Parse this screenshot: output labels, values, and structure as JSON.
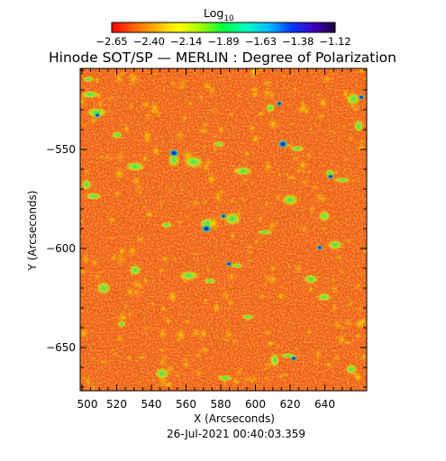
{
  "title": "Hinode SOT/SP — MERLIN : Degree of Polarization",
  "colorbar": {
    "label": "Log",
    "label_subscript": "10",
    "tick_labels": [
      "−2.65",
      "−2.40",
      "−2.14",
      "−1.89",
      "−1.63",
      "−1.38",
      "−1.12"
    ],
    "colors": [
      "#ff0000",
      "#ff6400",
      "#ffb400",
      "#ffff00",
      "#a0ff00",
      "#00ff40",
      "#00ffc0",
      "#00c0ff",
      "#0040ff",
      "#4000c0",
      "#200040"
    ]
  },
  "axes": {
    "x_label": "X (Arcseconds)",
    "y_label": "Y (Arcseconds)",
    "x_ticks": [
      "500",
      "520",
      "540",
      "560",
      "580",
      "600",
      "620",
      "640"
    ],
    "y_ticks": [
      "−550",
      "−600",
      "−650"
    ]
  },
  "timestamp": "26-Jul-2021 00:40:03.359",
  "image": {
    "description_colors": {
      "base": "#f06018",
      "mid": "#f8a010",
      "high": "#e8e000",
      "green": "#40e060",
      "cyan": "#00d0d0",
      "blue": "#1040e0",
      "navy": "#100060"
    }
  }
}
